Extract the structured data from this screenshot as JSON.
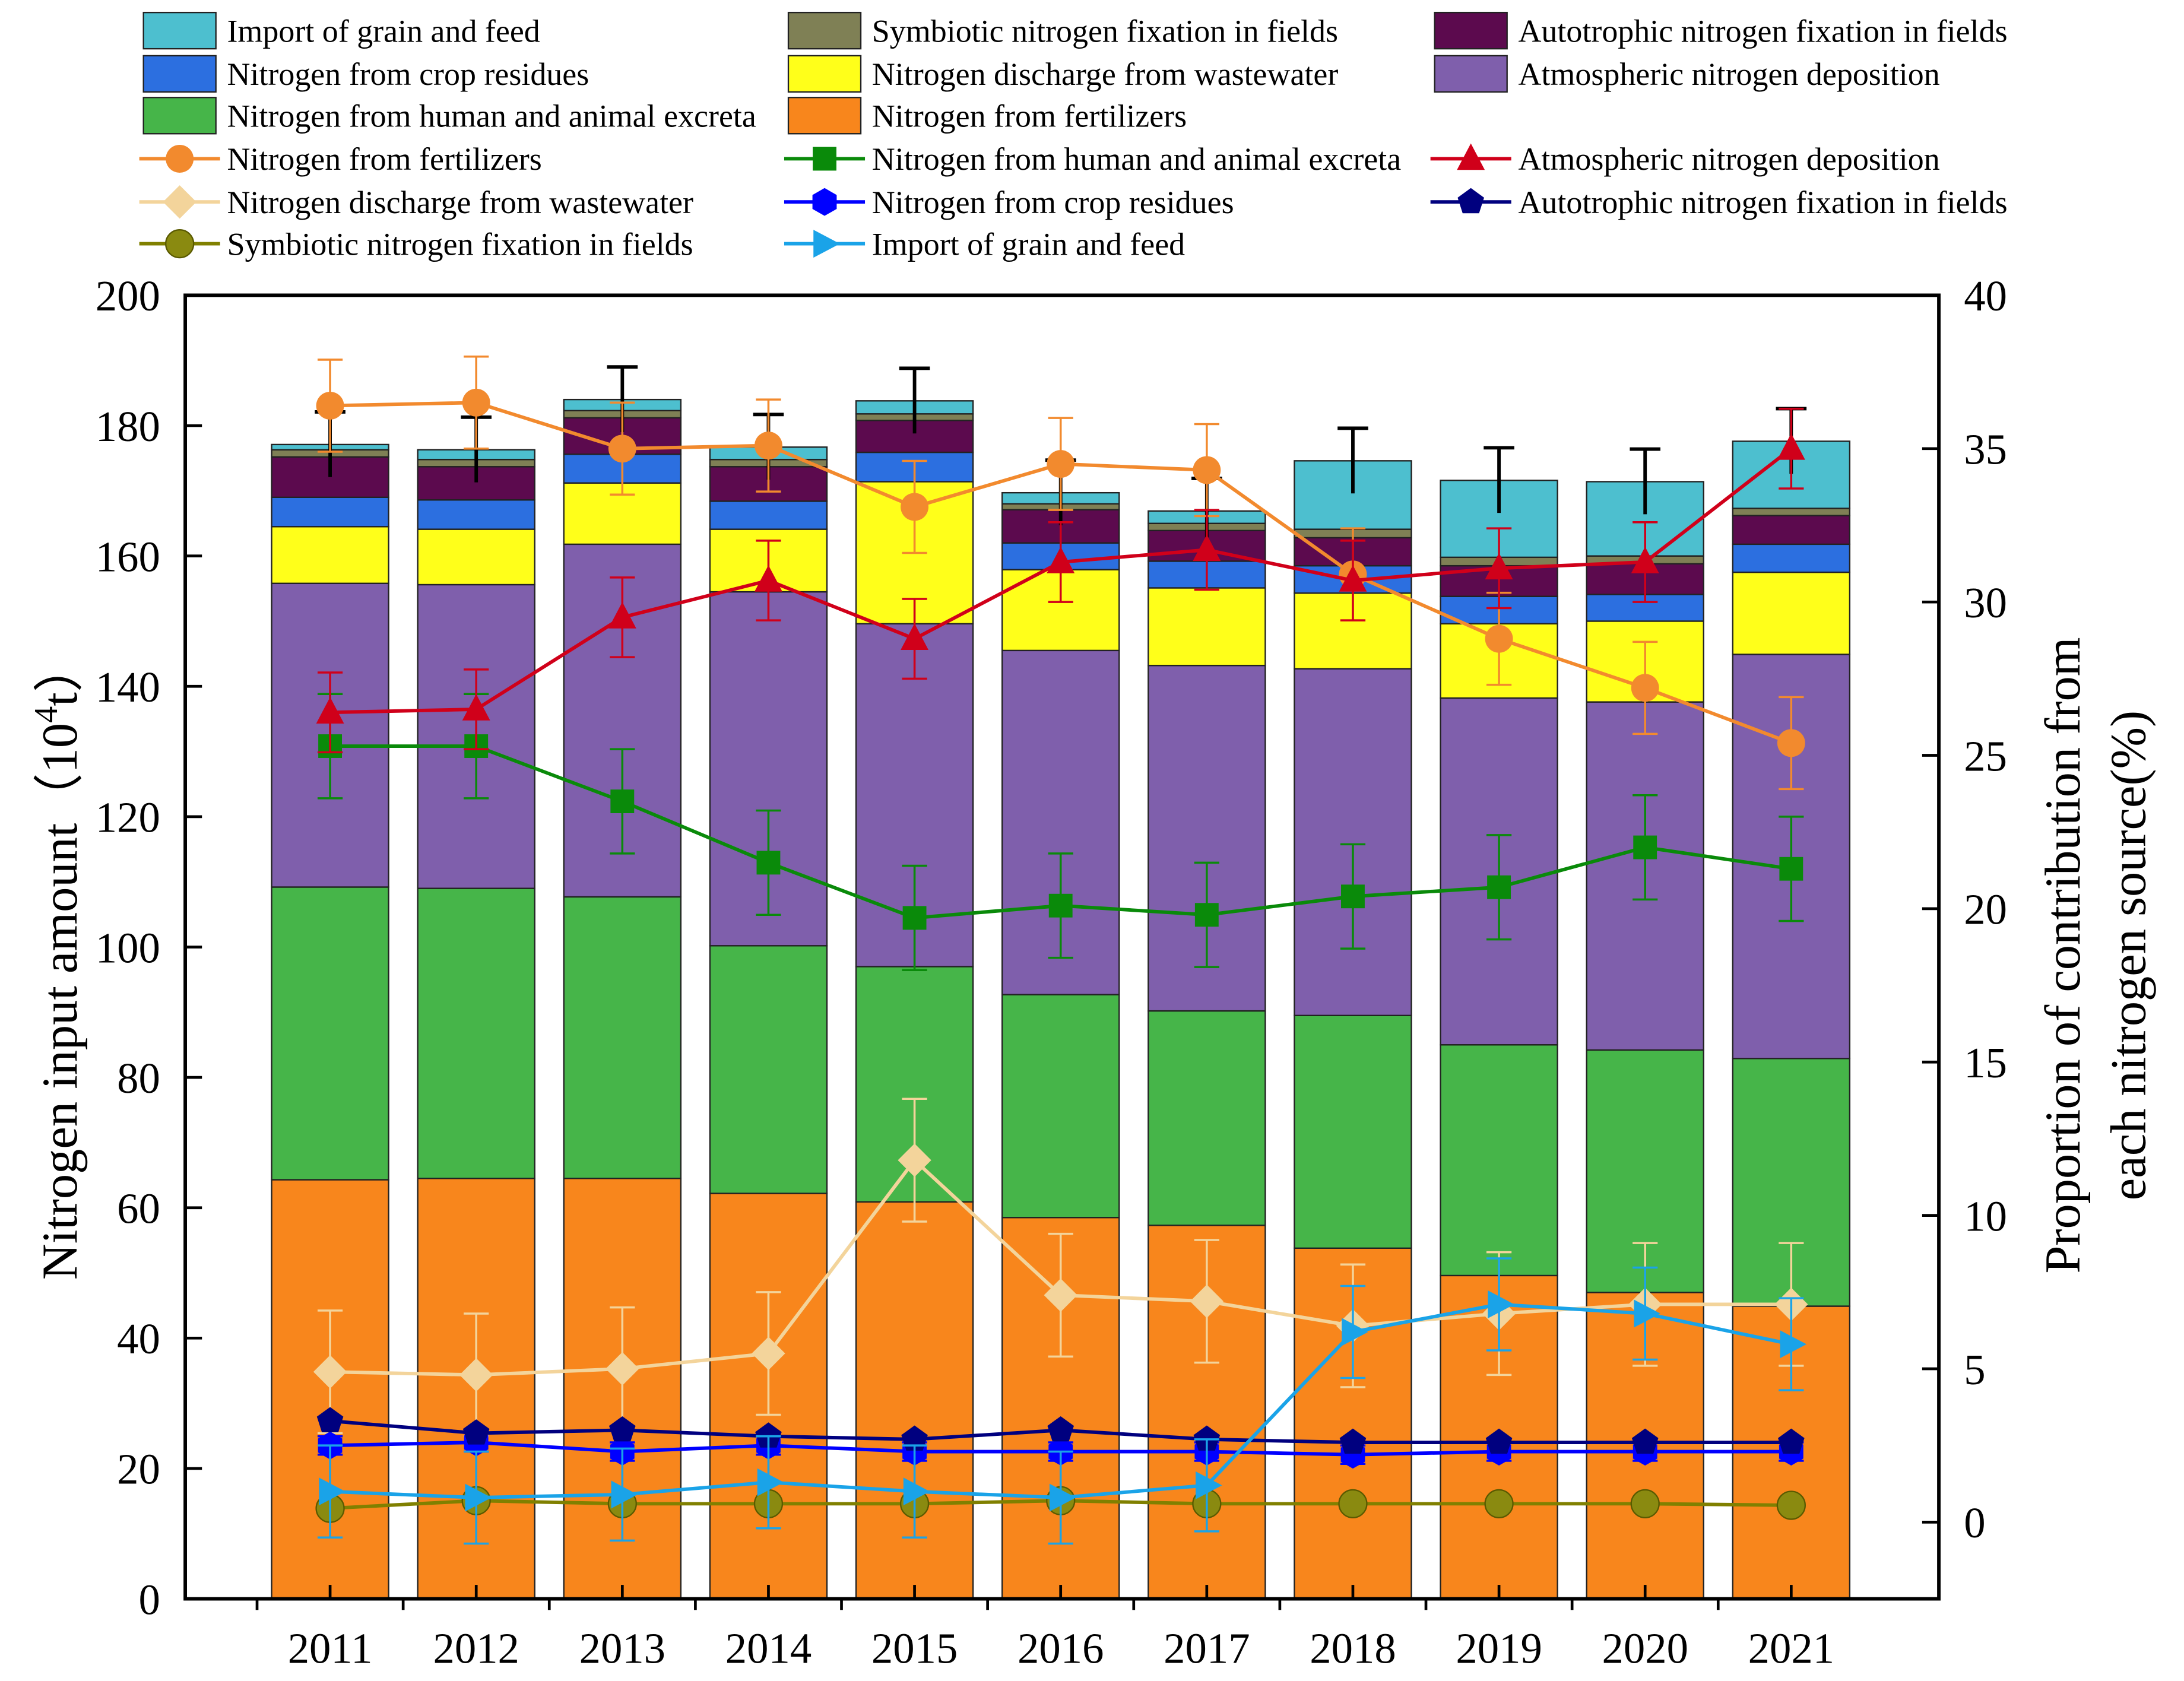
{
  "chart_data": {
    "type": "bar",
    "subtype": "stacked bar with line overlay (dual axis)",
    "categories": [
      "2011",
      "2012",
      "2013",
      "2014",
      "2015",
      "2016",
      "2017",
      "2018",
      "2019",
      "2020",
      "2021"
    ],
    "ylabel_left": "Nitrogen input amount（10⁴t）",
    "ylabel_left_parts": [
      "Nitrogen input amount（10",
      "4",
      "t）"
    ],
    "ylabel_right": [
      "Proportion of contribution from",
      "each nitrogen source(%)"
    ],
    "ylim_left": [
      0,
      200
    ],
    "yticks_left": [
      0,
      20,
      40,
      60,
      80,
      100,
      120,
      140,
      160,
      180,
      200
    ],
    "ylim_right": [
      -2.5,
      40
    ],
    "yticks_right": [
      0,
      5,
      10,
      15,
      20,
      25,
      30,
      35,
      40
    ],
    "legend_placement": "top",
    "bar_series": [
      {
        "name": "Nitrogen from fertilizers",
        "color": "#f8861c",
        "values": [
          64.3,
          64.5,
          64.5,
          62.2,
          60.9,
          58.5,
          57.3,
          53.8,
          49.6,
          47.0,
          44.9
        ]
      },
      {
        "name": "Nitrogen from human and animal excreta",
        "color": "#46b549",
        "values": [
          44.9,
          44.5,
          43.2,
          38.0,
          36.1,
          34.2,
          32.9,
          35.7,
          35.4,
          37.2,
          38.0
        ]
      },
      {
        "name": "Atmospheric nitrogen deposition",
        "color": "#7f5fac",
        "values": [
          46.6,
          46.6,
          54.1,
          54.3,
          52.6,
          52.8,
          53.0,
          53.2,
          53.2,
          53.4,
          62.0
        ]
      },
      {
        "name": "Nitrogen discharge from wastewater",
        "color": "#ffff1a",
        "values": [
          8.7,
          8.5,
          9.4,
          9.6,
          21.8,
          12.4,
          11.9,
          11.6,
          11.4,
          12.4,
          12.6
        ]
      },
      {
        "name": "Nitrogen from crop residues",
        "color": "#2c6fe0",
        "values": [
          4.5,
          4.5,
          4.4,
          4.3,
          4.5,
          4.1,
          4.1,
          4.2,
          4.2,
          4.1,
          4.3
        ]
      },
      {
        "name": "Autotrophic nitrogen fixation in fields",
        "color": "#5c0a4e",
        "values": [
          6.2,
          5.1,
          5.6,
          5.3,
          4.9,
          5.1,
          4.7,
          4.3,
          4.7,
          4.7,
          4.4
        ]
      },
      {
        "name": "Symbiotic nitrogen fixation in fields",
        "color": "#7f8055",
        "values": [
          1.1,
          1.1,
          1.1,
          1.1,
          1.0,
          0.9,
          1.1,
          1.3,
          1.3,
          1.2,
          1.1
        ]
      },
      {
        "name": "Import of grain and feed",
        "color": "#4dbfcf",
        "values": [
          0.8,
          1.5,
          1.7,
          1.9,
          2.0,
          1.7,
          1.9,
          10.5,
          11.8,
          11.4,
          10.3
        ]
      }
    ],
    "bar_total_error": 5,
    "line_series": [
      {
        "name": "Nitrogen from fertilizers",
        "color": "#f28a2e",
        "marker": "circle",
        "error": 1.5,
        "values": [
          36.4,
          36.5,
          35.0,
          35.1,
          33.1,
          34.5,
          34.3,
          30.9,
          28.8,
          27.2,
          25.4
        ]
      },
      {
        "name": "Nitrogen from human and animal excreta",
        "color": "#0a8a0a",
        "marker": "square",
        "error": 1.7,
        "values": [
          25.3,
          25.3,
          23.5,
          21.5,
          19.7,
          20.1,
          19.8,
          20.4,
          20.7,
          22.0,
          21.3
        ]
      },
      {
        "name": "Atmospheric nitrogen deposition",
        "color": "#d0001a",
        "marker": "triangle",
        "error": 1.3,
        "values": [
          26.4,
          26.5,
          29.5,
          30.7,
          28.8,
          31.3,
          31.7,
          30.7,
          31.1,
          31.3,
          35.0
        ]
      },
      {
        "name": "Nitrogen discharge from wastewater",
        "color": "#f3d49b",
        "marker": "diamond",
        "error": 2.0,
        "values": [
          4.9,
          4.8,
          5.0,
          5.5,
          11.8,
          7.4,
          7.2,
          6.4,
          6.8,
          7.1,
          7.1
        ]
      },
      {
        "name": "Nitrogen from crop residues",
        "color": "#0000ff",
        "marker": "hexagon",
        "error": 0.3,
        "values": [
          2.5,
          2.6,
          2.3,
          2.5,
          2.3,
          2.3,
          2.3,
          2.2,
          2.3,
          2.3,
          2.3
        ]
      },
      {
        "name": "Autotrophic nitrogen fixation in fields",
        "color": "#00007f",
        "marker": "pentagon",
        "error": 0,
        "values": [
          3.3,
          2.9,
          3.0,
          2.8,
          2.7,
          3.0,
          2.7,
          2.6,
          2.6,
          2.6,
          2.6
        ]
      },
      {
        "name": "Symbiotic nitrogen fixation in fields",
        "color": "#808000",
        "marker": "ball",
        "error": 0,
        "values": [
          0.45,
          0.7,
          0.6,
          0.6,
          0.6,
          0.7,
          0.6,
          0.6,
          0.6,
          0.6,
          0.55
        ]
      },
      {
        "name": "Import of grain and feed",
        "color": "#1aa3e8",
        "marker": "right-triangle",
        "error": 1.5,
        "values": [
          1.0,
          0.8,
          0.9,
          1.3,
          1.0,
          0.8,
          1.2,
          6.2,
          7.1,
          6.8,
          5.8
        ]
      }
    ],
    "bar_legend_order": [
      7,
      6,
      5,
      4,
      3,
      2,
      1,
      0
    ],
    "line_legend_order": [
      0,
      1,
      2,
      3,
      4,
      5,
      6,
      7
    ]
  }
}
